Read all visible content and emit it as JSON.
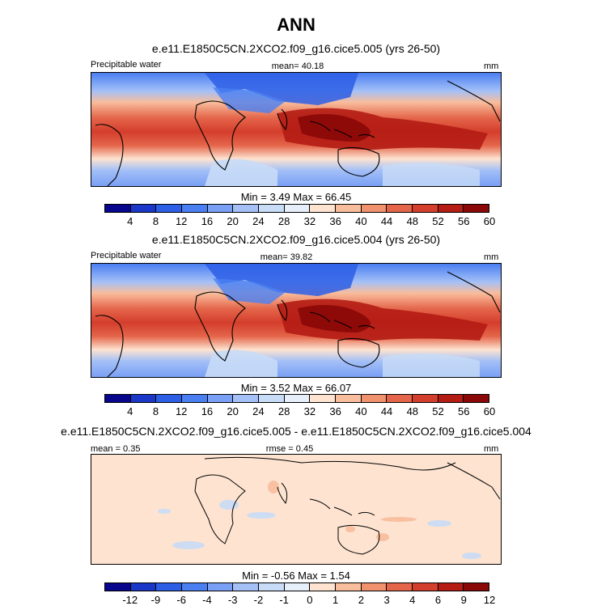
{
  "page_title": "ANN",
  "panels": [
    {
      "subtitle": "e.e11.E1850C5CN.2XCO2.f09_g16.cice5.005 (yrs 26-50)",
      "left_label": "Precipitable water",
      "center_label": "mean=  40.18",
      "right_label": "mm",
      "minmax": "Min =   3.49 Max =  66.45",
      "colorbar_labels": [
        "4",
        "8",
        "12",
        "16",
        "20",
        "24",
        "28",
        "32",
        "36",
        "40",
        "44",
        "48",
        "52",
        "56",
        "60"
      ]
    },
    {
      "subtitle": "e.e11.E1850C5CN.2XCO2.f09_g16.cice5.004 (yrs 26-50)",
      "left_label": "Precipitable water",
      "center_label": "mean=  39.82",
      "right_label": "mm",
      "minmax": "Min =   3.52 Max =  66.07",
      "colorbar_labels": [
        "4",
        "8",
        "12",
        "16",
        "20",
        "24",
        "28",
        "32",
        "36",
        "40",
        "44",
        "48",
        "52",
        "56",
        "60"
      ]
    },
    {
      "subtitle": "e.e11.E1850C5CN.2XCO2.f09_g16.cice5.005 - e.e11.E1850C5CN.2XCO2.f09_g16.cice5.004",
      "left_label": "mean =   0.35",
      "center_label": "rmse =   0.45",
      "right_label": "mm",
      "minmax": "Min =  -0.56 Max =   1.54",
      "colorbar_labels": [
        "-12",
        "-9",
        "-6",
        "-4",
        "-3",
        "-2",
        "-1",
        "0",
        "1",
        "2",
        "3",
        "4",
        "6",
        "9",
        "12"
      ]
    }
  ],
  "colors": {
    "palette": [
      "#08068c",
      "#1a37c8",
      "#2c5ee6",
      "#4a7ff2",
      "#7aa0f5",
      "#a4c0f7",
      "#c8dcf7",
      "#e6effa",
      "#fde3d0",
      "#f8bd9c",
      "#f0926e",
      "#e4654a",
      "#d43e2c",
      "#b41c14",
      "#8a0808"
    ],
    "land_line": "#000000"
  }
}
